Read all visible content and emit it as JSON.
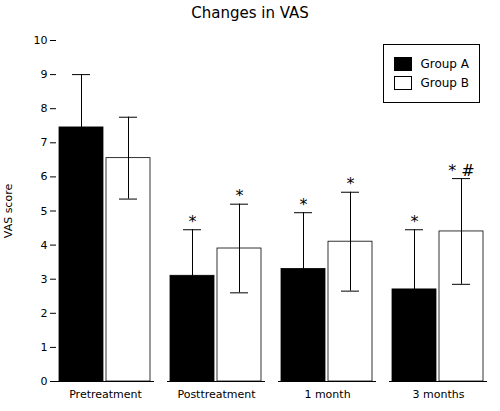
{
  "chart_data": {
    "type": "bar",
    "title": "Changes in VAS",
    "ylabel": "VAS score",
    "categories": [
      "Pretreatment",
      "Posttreatment",
      "1 month",
      "3 months"
    ],
    "series": [
      {
        "name": "Group A",
        "color": "#000000",
        "values": [
          7.45,
          3.1,
          3.3,
          2.7
        ],
        "errors": [
          1.55,
          1.35,
          1.65,
          1.75
        ],
        "annotations": [
          null,
          "*",
          "*",
          "*"
        ]
      },
      {
        "name": "Group B",
        "color": "#ffffff",
        "values": [
          6.55,
          3.9,
          4.1,
          4.4
        ],
        "errors": [
          1.2,
          1.3,
          1.45,
          1.55
        ],
        "annotations": [
          null,
          "*",
          "*",
          "* #"
        ]
      }
    ],
    "ylim": [
      0,
      10
    ],
    "yticks": [
      0,
      1,
      2,
      3,
      4,
      5,
      6,
      7,
      8,
      9,
      10
    ],
    "grid": false,
    "legend": "upper right"
  }
}
